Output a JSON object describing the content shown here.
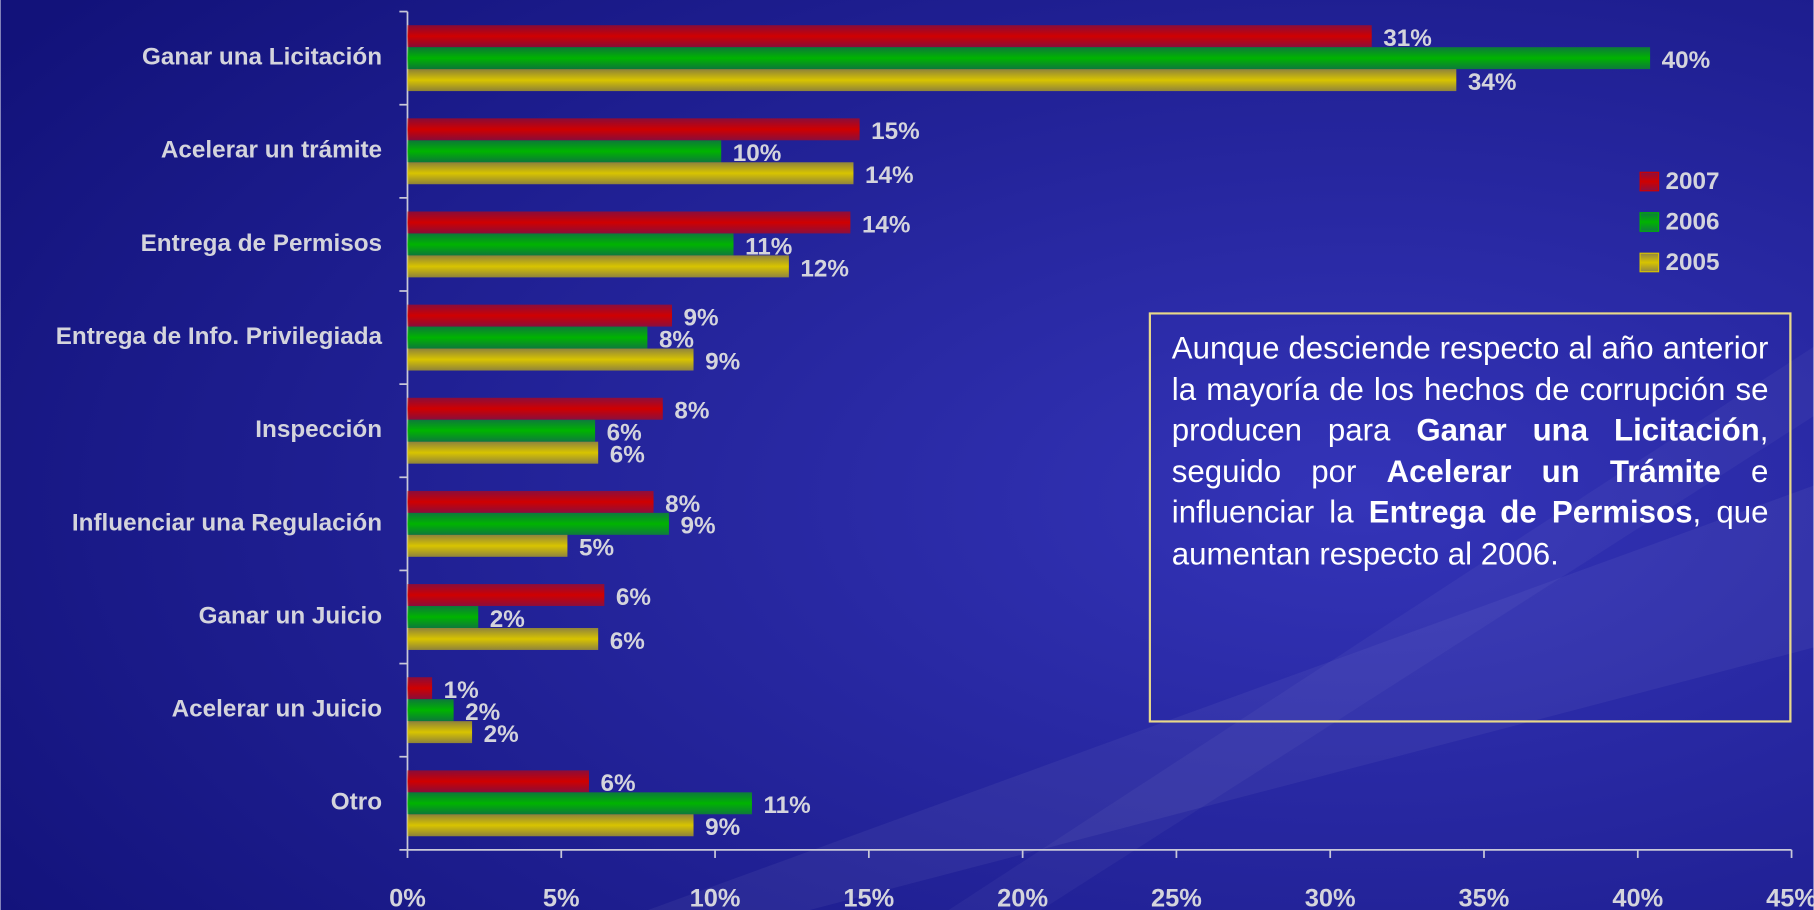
{
  "chart_data": {
    "type": "bar",
    "orientation": "horizontal",
    "categories": [
      "Ganar una Licitación",
      "Acelerar un trámite",
      "Entrega de Permisos",
      "Entrega de Info. Privilegiada",
      "Inspección",
      "Influenciar una Regulación",
      "Ganar un Juicio",
      "Acelerar un Juicio",
      "Otro"
    ],
    "series": [
      {
        "name": "2007",
        "color": "#d00000",
        "values": [
          31.35,
          14.7,
          14.4,
          8.6,
          8.3,
          8.0,
          6.4,
          0.8,
          5.9
        ],
        "value_labels": [
          "31%",
          "15%",
          "14%",
          "9%",
          "8%",
          "8%",
          "6%",
          "1%",
          "6%"
        ]
      },
      {
        "name": "2006",
        "color": "#00b400",
        "values": [
          40.4,
          10.2,
          10.6,
          7.8,
          6.1,
          8.5,
          2.3,
          1.5,
          11.2
        ],
        "value_labels": [
          "40%",
          "10%",
          "11%",
          "8%",
          "6%",
          "9%",
          "2%",
          "2%",
          "11%"
        ]
      },
      {
        "name": "2005",
        "color": "#d8c400",
        "values": [
          34.1,
          14.5,
          12.4,
          9.3,
          6.2,
          5.2,
          6.2,
          2.1,
          9.3
        ],
        "value_labels": [
          "34%",
          "14%",
          "12%",
          "9%",
          "6%",
          "5%",
          "6%",
          "2%",
          "9%"
        ]
      }
    ],
    "xlim": [
      0,
      45
    ],
    "xticks": [
      {
        "value": 0,
        "label": "0%"
      },
      {
        "value": 5,
        "label": "5%"
      },
      {
        "value": 10,
        "label": "10%"
      },
      {
        "value": 15,
        "label": "15%"
      },
      {
        "value": 20,
        "label": "20%"
      },
      {
        "value": 25,
        "label": "25%"
      },
      {
        "value": 30,
        "label": "30%"
      },
      {
        "value": 35,
        "label": "35%"
      },
      {
        "value": 40,
        "label": "40%"
      },
      {
        "value": 45,
        "label": "45%"
      }
    ],
    "grid": false,
    "legend": "right",
    "annotation": [
      {
        "text": "Aunque desciende respecto al año anterior la mayoría de los hechos de corrupción se producen para ",
        "bold": false
      },
      {
        "text": "Ganar una Licitación",
        "bold": true
      },
      {
        "text": ", seguido por ",
        "bold": false
      },
      {
        "text": "Acelerar un Trámite",
        "bold": true
      },
      {
        "text": " e influenciar la ",
        "bold": false
      },
      {
        "text": "Entrega de Permisos",
        "bold": true
      },
      {
        "text": ", que aumentan respecto al 2006.",
        "bold": false
      }
    ]
  }
}
